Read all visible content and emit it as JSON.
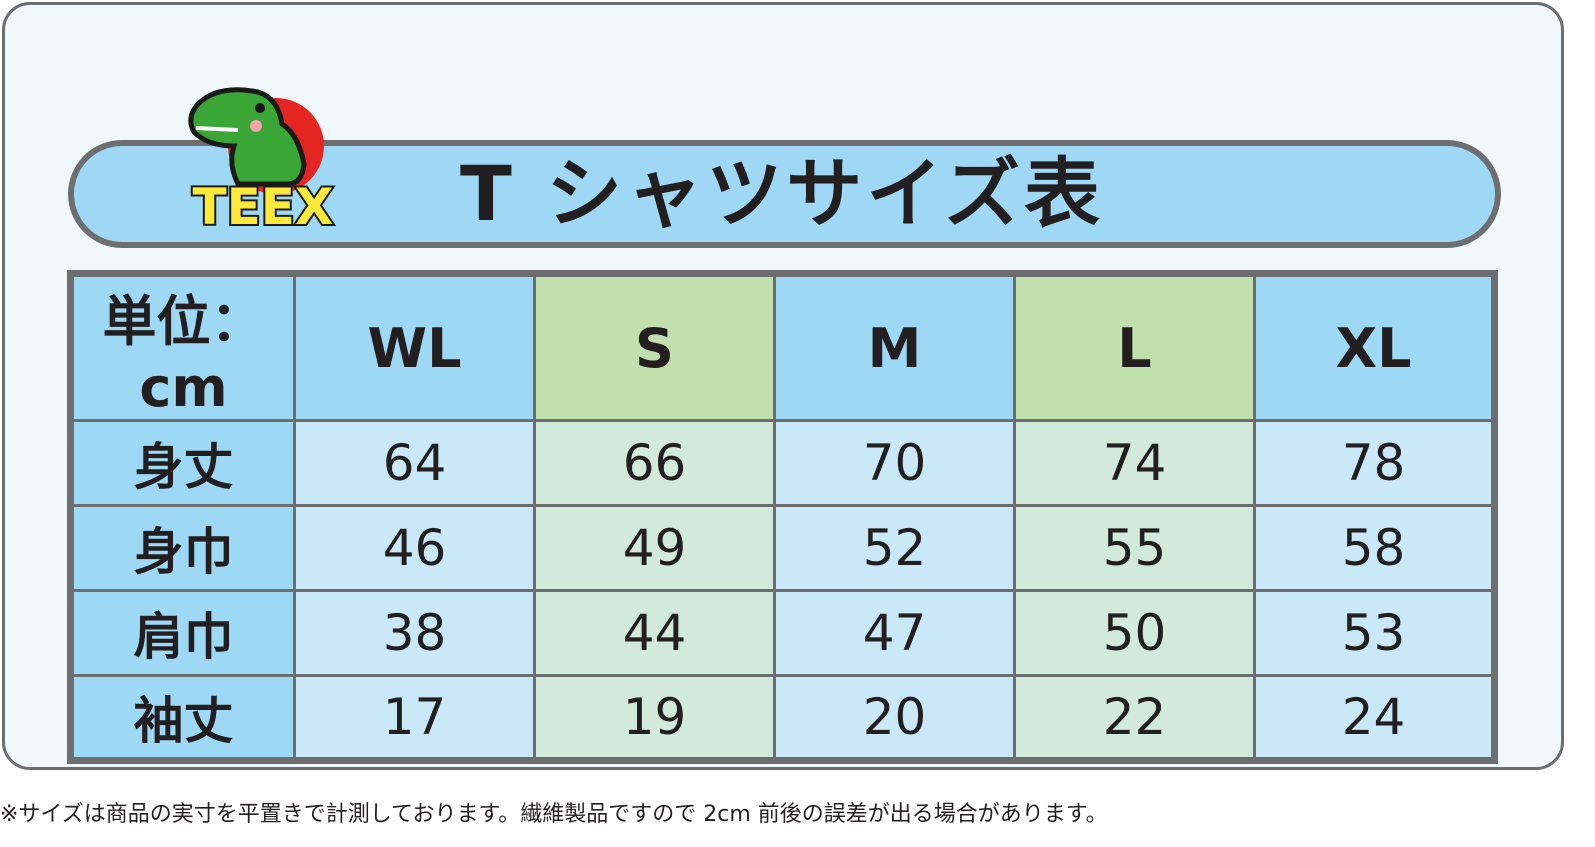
{
  "logo": {
    "text": "TEEX",
    "colors": {
      "dino": "#3aa635",
      "circle": "#e52521",
      "text": "#fde93a"
    }
  },
  "title": "T シャツサイズ表",
  "table": {
    "unit_label": "単位：cm",
    "columns": [
      "WL",
      "S",
      "M",
      "L",
      "XL"
    ],
    "rows": [
      {
        "label": "身丈",
        "values": [
          "64",
          "66",
          "70",
          "74",
          "78"
        ]
      },
      {
        "label": "身巾",
        "values": [
          "46",
          "49",
          "52",
          "55",
          "58"
        ]
      },
      {
        "label": "肩巾",
        "values": [
          "38",
          "44",
          "47",
          "50",
          "53"
        ]
      },
      {
        "label": "袖丈",
        "values": [
          "17",
          "19",
          "20",
          "22",
          "24"
        ]
      }
    ]
  },
  "colors": {
    "blue": "#9dd8f5",
    "green": "#c2dfae",
    "border": "#6d6e70"
  },
  "footnote": "※サイズは商品の実寸を平置きで計測しております。繊維製品ですので 2cm 前後の誤差が出る場合があります。"
}
